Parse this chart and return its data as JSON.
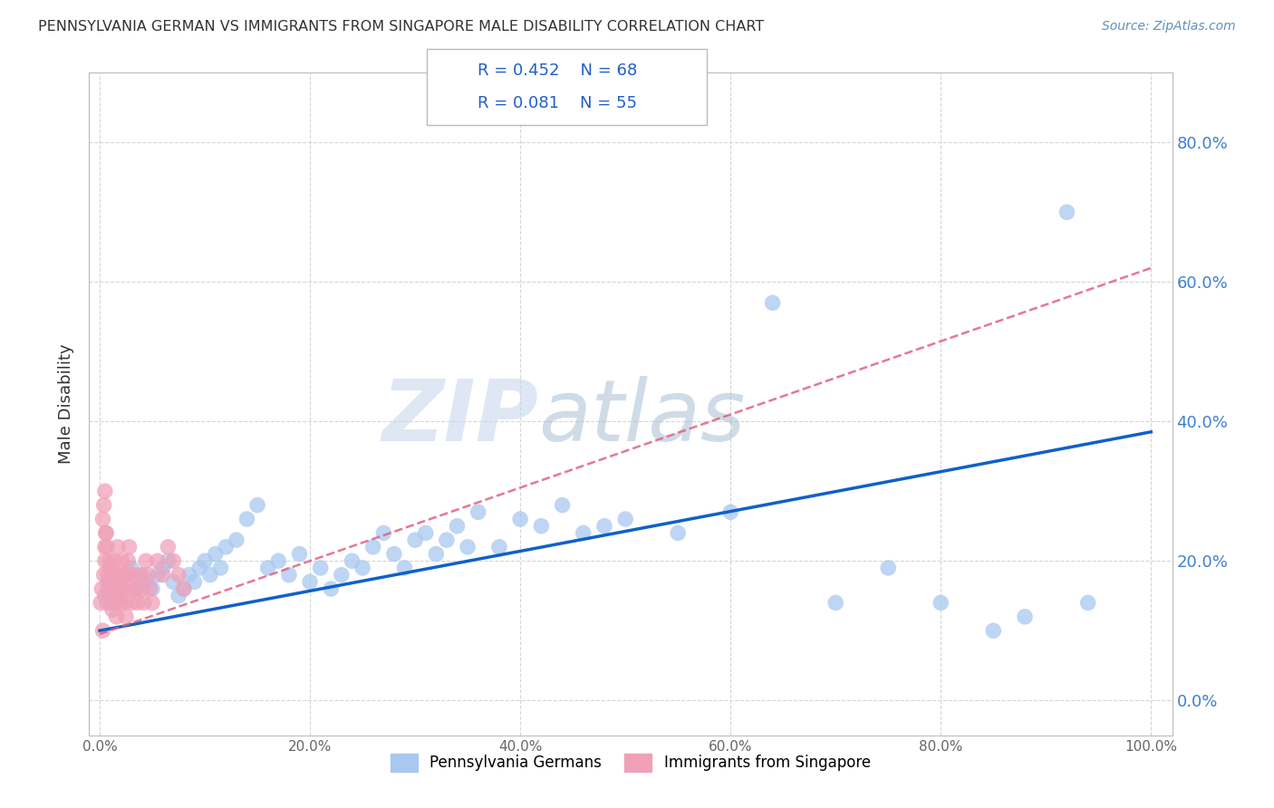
{
  "title": "PENNSYLVANIA GERMAN VS IMMIGRANTS FROM SINGAPORE MALE DISABILITY CORRELATION CHART",
  "source": "Source: ZipAtlas.com",
  "ylabel": "Male Disability",
  "xlim": [
    -0.01,
    1.02
  ],
  "ylim": [
    -0.05,
    0.9
  ],
  "xticks": [
    0.0,
    0.2,
    0.4,
    0.6,
    0.8,
    1.0
  ],
  "yticks": [
    0.0,
    0.2,
    0.4,
    0.6,
    0.8
  ],
  "xticklabels": [
    "0.0%",
    "20.0%",
    "40.0%",
    "60.0%",
    "80.0%",
    "100.0%"
  ],
  "yticklabels_left": [
    "",
    "",
    "",
    "",
    ""
  ],
  "yticklabels_right": [
    "0.0%",
    "20.0%",
    "40.0%",
    "60.0%",
    "80.0%"
  ],
  "legend_R1": "R = 0.452",
  "legend_N1": "N = 68",
  "legend_R2": "R = 0.081",
  "legend_N2": "N = 55",
  "color_blue": "#A8C8F0",
  "color_pink": "#F0A0B8",
  "color_line_blue": "#1060C8",
  "color_line_pink": "#E06080",
  "watermark_zip": "ZIP",
  "watermark_atlas": "atlas",
  "blue_line_x0": 0.0,
  "blue_line_y0": 0.1,
  "blue_line_x1": 1.0,
  "blue_line_y1": 0.385,
  "pink_line_x0": 0.0,
  "pink_line_y0": 0.095,
  "pink_line_x1": 1.0,
  "pink_line_y1": 0.62,
  "blue_scatter_x": [
    0.005,
    0.008,
    0.01,
    0.012,
    0.015,
    0.018,
    0.02,
    0.025,
    0.03,
    0.035,
    0.04,
    0.045,
    0.05,
    0.055,
    0.06,
    0.065,
    0.07,
    0.075,
    0.08,
    0.085,
    0.09,
    0.095,
    0.1,
    0.105,
    0.11,
    0.115,
    0.12,
    0.13,
    0.14,
    0.15,
    0.16,
    0.17,
    0.18,
    0.19,
    0.2,
    0.21,
    0.22,
    0.23,
    0.24,
    0.25,
    0.26,
    0.27,
    0.28,
    0.29,
    0.3,
    0.31,
    0.32,
    0.33,
    0.34,
    0.35,
    0.36,
    0.38,
    0.4,
    0.42,
    0.44,
    0.46,
    0.48,
    0.5,
    0.55,
    0.6,
    0.64,
    0.7,
    0.75,
    0.8,
    0.85,
    0.88,
    0.92,
    0.94
  ],
  "blue_scatter_y": [
    0.15,
    0.17,
    0.14,
    0.18,
    0.16,
    0.15,
    0.17,
    0.18,
    0.19,
    0.16,
    0.18,
    0.17,
    0.16,
    0.18,
    0.19,
    0.2,
    0.17,
    0.15,
    0.16,
    0.18,
    0.17,
    0.19,
    0.2,
    0.18,
    0.21,
    0.19,
    0.22,
    0.23,
    0.26,
    0.28,
    0.19,
    0.2,
    0.18,
    0.21,
    0.17,
    0.19,
    0.16,
    0.18,
    0.2,
    0.19,
    0.22,
    0.24,
    0.21,
    0.19,
    0.23,
    0.24,
    0.21,
    0.23,
    0.25,
    0.22,
    0.27,
    0.22,
    0.26,
    0.25,
    0.28,
    0.24,
    0.25,
    0.26,
    0.24,
    0.27,
    0.57,
    0.14,
    0.19,
    0.14,
    0.1,
    0.12,
    0.7,
    0.14
  ],
  "pink_scatter_x": [
    0.001,
    0.002,
    0.003,
    0.004,
    0.005,
    0.005,
    0.006,
    0.007,
    0.008,
    0.008,
    0.009,
    0.01,
    0.01,
    0.011,
    0.012,
    0.013,
    0.014,
    0.015,
    0.015,
    0.016,
    0.017,
    0.018,
    0.019,
    0.02,
    0.021,
    0.022,
    0.023,
    0.024,
    0.025,
    0.026,
    0.027,
    0.028,
    0.029,
    0.03,
    0.032,
    0.034,
    0.036,
    0.038,
    0.04,
    0.042,
    0.044,
    0.046,
    0.048,
    0.05,
    0.055,
    0.06,
    0.065,
    0.07,
    0.075,
    0.08,
    0.003,
    0.004,
    0.005,
    0.006,
    0.007
  ],
  "pink_scatter_y": [
    0.14,
    0.16,
    0.1,
    0.18,
    0.2,
    0.22,
    0.24,
    0.14,
    0.18,
    0.16,
    0.2,
    0.17,
    0.19,
    0.15,
    0.13,
    0.18,
    0.2,
    0.16,
    0.14,
    0.12,
    0.22,
    0.18,
    0.16,
    0.14,
    0.2,
    0.18,
    0.16,
    0.14,
    0.12,
    0.18,
    0.2,
    0.22,
    0.16,
    0.14,
    0.18,
    0.16,
    0.14,
    0.18,
    0.16,
    0.14,
    0.2,
    0.18,
    0.16,
    0.14,
    0.2,
    0.18,
    0.22,
    0.2,
    0.18,
    0.16,
    0.26,
    0.28,
    0.3,
    0.24,
    0.22
  ]
}
